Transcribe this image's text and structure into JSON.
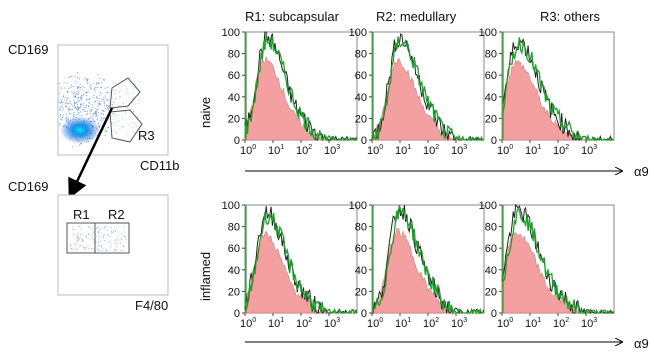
{
  "flow": {
    "top_plot": {
      "ylabel": "CD169",
      "xlabel": "CD11b",
      "gate": "R3"
    },
    "bottom_plot": {
      "ylabel": "CD169",
      "xlabel": "F4/80",
      "gates": [
        "R1",
        "R2"
      ]
    }
  },
  "column_headers": [
    "R1: subcapsular",
    "R2: medullary",
    "R3: others"
  ],
  "row_labels": [
    "naive",
    "inflamed"
  ],
  "x_axis_label": "α9",
  "chart_data": {
    "type": "area",
    "description_series": [
      "control (pink fill)",
      "α9 stain (black)",
      "α9 stain (green)"
    ],
    "ylim": [
      0,
      100
    ],
    "yticks": [
      "0",
      "20",
      "40",
      "60",
      "80",
      "100"
    ],
    "xscale": "log",
    "xlim": [
      1,
      10000
    ],
    "xticks": [
      {
        "base": "10",
        "exp": "0"
      },
      {
        "base": "10",
        "exp": "1"
      },
      {
        "base": "10",
        "exp": "2"
      },
      {
        "base": "10",
        "exp": "3"
      }
    ],
    "panels": [
      {
        "row": "naive",
        "column": "R1: subcapsular",
        "peak_log": 0.75,
        "peak": 95,
        "spread": 0.45
      },
      {
        "row": "naive",
        "column": "R2: medullary",
        "peak_log": 0.95,
        "peak": 95,
        "spread": 0.45
      },
      {
        "row": "naive",
        "column": "R3: others",
        "peak_log": 0.55,
        "peak": 92,
        "spread": 0.5
      },
      {
        "row": "inflamed",
        "column": "R1: subcapsular",
        "peak_log": 0.75,
        "peak": 93,
        "spread": 0.45
      },
      {
        "row": "inflamed",
        "column": "R2: medullary",
        "peak_log": 0.95,
        "peak": 97,
        "spread": 0.45
      },
      {
        "row": "inflamed",
        "column": "R3: others",
        "peak_log": 0.55,
        "peak": 95,
        "spread": 0.5
      }
    ]
  },
  "colors": {
    "fill": "#f4a0a0",
    "black_line": "#222222",
    "green_line": "#1aa32a",
    "frame": "#8a8a8a",
    "density": "#1e5fd0"
  }
}
